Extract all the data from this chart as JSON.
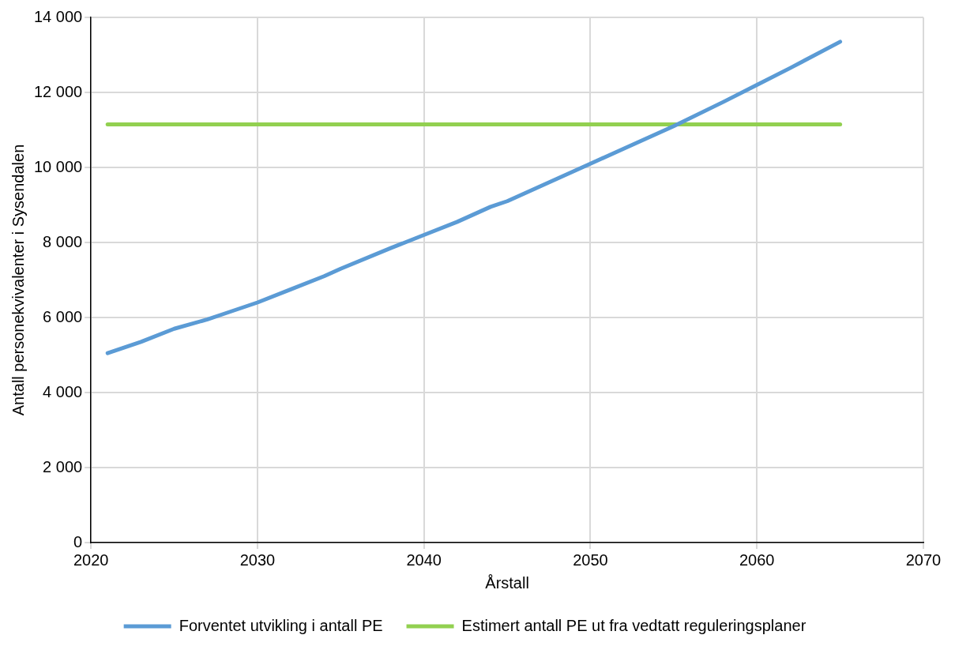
{
  "chart_data": {
    "type": "line",
    "xlabel": "Årstall",
    "ylabel": "Antall personekvivalenter i Sysendalen",
    "xlim": [
      2020,
      2070
    ],
    "xticks": [
      2020,
      2030,
      2040,
      2050,
      2060,
      2070
    ],
    "ylim": [
      0,
      14000
    ],
    "yticks": [
      {
        "value": 0,
        "label": "0"
      },
      {
        "value": 2000,
        "label": "2 000"
      },
      {
        "value": 4000,
        "label": "4 000"
      },
      {
        "value": 6000,
        "label": "6 000"
      },
      {
        "value": 8000,
        "label": "8 000"
      },
      {
        "value": 10000,
        "label": "10 000"
      },
      {
        "value": 12000,
        "label": "12 000"
      },
      {
        "value": 14000,
        "label": "14 000"
      }
    ],
    "grid": true,
    "legend": "bottom",
    "marker": "none",
    "line_style": "solid",
    "series": [
      {
        "name": "Forventet utvikling i antall PE",
        "color": "#5b9bd5",
        "x": [
          2021,
          2023,
          2025,
          2027,
          2028,
          2030,
          2032,
          2034,
          2035,
          2038,
          2040,
          2042,
          2044,
          2045,
          2048,
          2050,
          2052,
          2055,
          2058,
          2060,
          2062,
          2065
        ],
        "values": [
          5050,
          5350,
          5700,
          5950,
          6100,
          6400,
          6750,
          7100,
          7300,
          7850,
          8200,
          8550,
          8950,
          9100,
          9700,
          10100,
          10500,
          11100,
          11750,
          12200,
          12650,
          13350
        ]
      },
      {
        "name": "Estimert antall PE ut fra vedtatt reguleringsplaner",
        "color": "#92d050",
        "x": [
          2021,
          2065
        ],
        "values": [
          11150,
          11150
        ]
      }
    ]
  }
}
